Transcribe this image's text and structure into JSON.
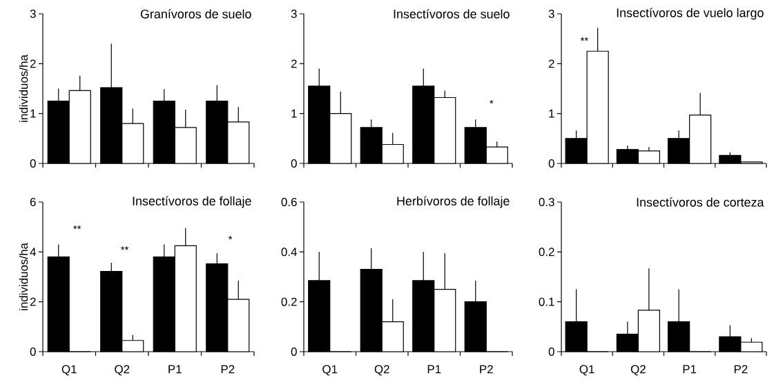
{
  "chart_data": [
    {
      "type": "bar",
      "title": "Granívoros de suelo",
      "ylabel": "individuos/ha",
      "categories": [
        null,
        null,
        null,
        null
      ],
      "ylim": [
        0,
        3
      ],
      "yticks": [
        0,
        1,
        2,
        3
      ],
      "series": [
        {
          "color": "#000000",
          "values": [
            1.25,
            1.52,
            1.25,
            1.25
          ],
          "errors": [
            [
              1.25,
              1.5
            ],
            [
              1.52,
              2.4
            ],
            [
              1.25,
              1.49
            ],
            [
              1.25,
              1.57
            ]
          ]
        },
        {
          "color": "#ffffff",
          "values": [
            1.46,
            0.8,
            0.72,
            0.83
          ],
          "errors": [
            [
              1.46,
              1.76
            ],
            [
              0.8,
              1.1
            ],
            [
              0.72,
              1.08
            ],
            [
              0.83,
              1.13
            ]
          ]
        }
      ]
    },
    {
      "type": "bar",
      "title": "Insectívoros de suelo",
      "categories": [
        null,
        null,
        null,
        null
      ],
      "ylim": [
        0,
        3
      ],
      "yticks": [
        0,
        1,
        2,
        3
      ],
      "annotations": [
        "*"
      ],
      "series": [
        {
          "color": "#000000",
          "values": [
            1.55,
            0.72,
            1.55,
            0.72
          ],
          "errors": [
            [
              1.55,
              1.9
            ],
            [
              0.72,
              0.88
            ],
            [
              1.55,
              1.9
            ],
            [
              0.72,
              0.88
            ]
          ]
        },
        {
          "color": "#ffffff",
          "values": [
            1.0,
            0.38,
            1.32,
            0.33
          ],
          "errors": [
            [
              1.0,
              1.44
            ],
            [
              0.38,
              0.61
            ],
            [
              1.32,
              1.46
            ],
            [
              0.33,
              0.44
            ]
          ]
        }
      ]
    },
    {
      "type": "bar",
      "title": "Insectívoros de vuelo largo",
      "categories": [
        null,
        null,
        null,
        null
      ],
      "ylim": [
        0,
        3
      ],
      "yticks": [
        0,
        1,
        2,
        3
      ],
      "annotations": [
        "**"
      ],
      "series": [
        {
          "color": "#000000",
          "values": [
            0.5,
            0.28,
            0.5,
            0.16
          ],
          "errors": [
            [
              0.5,
              0.66
            ],
            [
              0.28,
              0.36
            ],
            [
              0.5,
              0.66
            ],
            [
              0.16,
              0.22
            ]
          ]
        },
        {
          "color": "#ffffff",
          "values": [
            2.25,
            0.25,
            0.97,
            0.03
          ],
          "errors": [
            [
              2.25,
              2.72
            ],
            [
              0.25,
              0.33
            ],
            [
              0.97,
              1.41
            ],
            null
          ]
        }
      ]
    },
    {
      "type": "bar",
      "title": "Insectívoros de follaje",
      "ylabel": "individuos/ha",
      "categories": [
        "Q1",
        "Q2",
        "P1",
        "P2"
      ],
      "ylim": [
        0,
        6
      ],
      "yticks": [
        0,
        2,
        4,
        6
      ],
      "annotations": [
        "**",
        "**",
        "*"
      ],
      "series": [
        {
          "color": "#000000",
          "values": [
            3.8,
            3.22,
            3.8,
            3.52
          ],
          "errors": [
            [
              3.8,
              4.3
            ],
            [
              3.22,
              3.57
            ],
            [
              3.8,
              4.3
            ],
            [
              3.52,
              3.95
            ]
          ]
        },
        {
          "color": "#ffffff",
          "values": [
            0,
            0.45,
            4.25,
            2.1
          ],
          "errors": [
            null,
            [
              0.45,
              0.67
            ],
            [
              4.25,
              4.95
            ],
            [
              2.1,
              2.85
            ]
          ]
        }
      ]
    },
    {
      "type": "bar",
      "title": "Herbívoros de follaje",
      "categories": [
        "Q1",
        "Q2",
        "P1",
        "P2"
      ],
      "ylim": [
        0,
        0.6
      ],
      "yticks": [
        0,
        0.2,
        0.4,
        0.6
      ],
      "series": [
        {
          "color": "#000000",
          "values": [
            0.285,
            0.33,
            0.285,
            0.2
          ],
          "errors": [
            [
              0.285,
              0.4
            ],
            [
              0.33,
              0.415
            ],
            [
              0.285,
              0.4
            ],
            [
              0.2,
              0.285
            ]
          ]
        },
        {
          "color": "#ffffff",
          "values": [
            0,
            0.12,
            0.25,
            0
          ],
          "errors": [
            null,
            [
              0.12,
              0.21
            ],
            [
              0.25,
              0.395
            ],
            null
          ]
        }
      ]
    },
    {
      "type": "bar",
      "title": "Insectívoros de corteza",
      "categories": [
        "Q1",
        "Q2",
        "P1",
        "P2"
      ],
      "ylim": [
        0,
        0.3
      ],
      "yticks": [
        0,
        0.1,
        0.2,
        0.3
      ],
      "series": [
        {
          "color": "#000000",
          "values": [
            0.06,
            0.035,
            0.06,
            0.03
          ],
          "errors": [
            [
              0.06,
              0.125
            ],
            [
              0.035,
              0.06
            ],
            [
              0.06,
              0.125
            ],
            [
              0.03,
              0.053
            ]
          ]
        },
        {
          "color": "#ffffff",
          "values": [
            0,
            0.083,
            0,
            0.019
          ],
          "errors": [
            null,
            [
              0.083,
              0.167
            ],
            null,
            [
              0.019,
              0.027
            ]
          ]
        }
      ]
    }
  ]
}
